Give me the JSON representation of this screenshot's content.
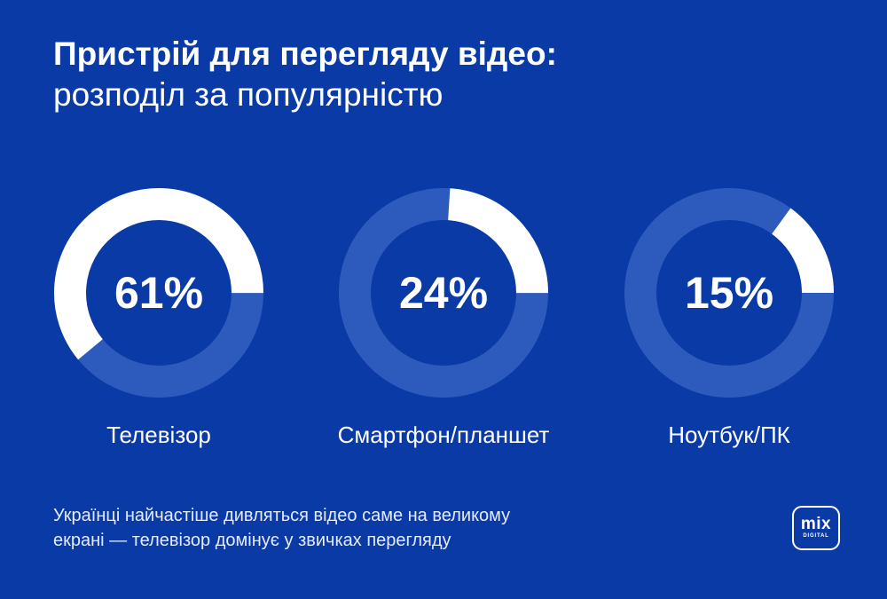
{
  "title_line1": "Пристрій для перегляду відео:",
  "title_line2": "розподіл за популярністю",
  "chart_data": {
    "type": "donut",
    "unit": "%",
    "items": [
      {
        "label": "Телевізор",
        "value": 61,
        "display": "61%"
      },
      {
        "label": "Смартфон/планшет",
        "value": 24,
        "display": "24%"
      },
      {
        "label": "Ноутбук/ПК",
        "value": 15,
        "display": "15%"
      }
    ]
  },
  "note_line1": "Українці найчастіше дивляться відео саме на великому",
  "note_line2": "екрані — телевізор домінує у звичках перегляду",
  "logo_main": "mix",
  "logo_sub": "DIGITAL",
  "colors": {
    "background": "#0a3aa6",
    "track": "#2d5bbd",
    "fill": "#ffffff"
  }
}
